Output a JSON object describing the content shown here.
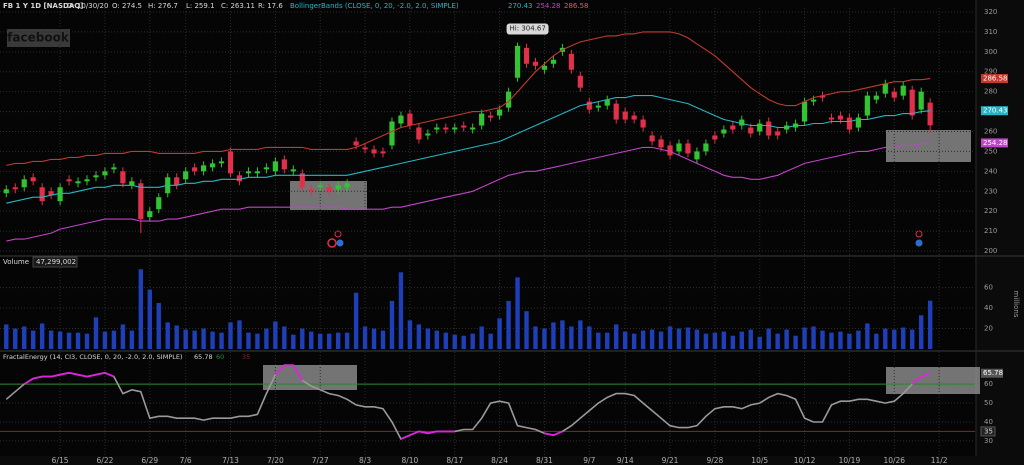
{
  "header": {
    "symbol": "FB 1 Y 1D [NASDAQ]",
    "date": "D: 10/30/20",
    "open": "O: 274.5",
    "high": "H: 276.7",
    "low": "L: 259.1",
    "close": "C: 263.11",
    "range": "R: 17.6",
    "study": "BollingerBands (CLOSE, 0, 20, -2.0, 2.0, SIMPLE)",
    "study_values": [
      "270.43",
      "254.28",
      "286.58"
    ]
  },
  "watermark": "facebook",
  "chart_data": [
    {
      "type": "candlestick",
      "annotation": "Hi: 304.67",
      "up_color": "#33c433",
      "down_color": "#e0304a",
      "xlim": [
        -0.7,
        108
      ],
      "ylim": [
        198,
        322
      ],
      "yticks": [
        200,
        210,
        220,
        230,
        240,
        250,
        260,
        270,
        280,
        290,
        300,
        310,
        320
      ],
      "grid": true,
      "open": [
        229,
        232,
        232,
        237,
        232,
        230,
        225,
        236,
        234,
        235,
        237,
        238,
        241,
        240,
        233,
        234,
        217,
        221,
        229,
        237,
        236,
        242,
        240,
        242,
        244,
        250,
        238,
        239,
        239,
        241,
        240,
        246,
        240,
        239,
        231,
        232,
        232,
        231,
        232,
        255,
        252,
        251,
        250,
        253,
        264,
        269,
        262,
        258,
        261,
        262,
        261,
        263,
        261,
        263,
        268,
        268,
        272,
        287,
        302,
        295,
        291,
        294,
        300,
        299,
        288,
        275,
        272,
        273,
        274,
        270,
        268,
        266,
        258,
        256,
        253,
        250,
        254,
        246,
        250,
        258,
        259,
        263,
        263,
        262,
        260,
        265,
        260,
        261,
        262,
        265,
        275,
        278,
        267,
        268,
        267,
        262,
        268,
        276,
        279,
        280,
        278,
        281,
        271,
        274.5
      ],
      "high": [
        233,
        234,
        238,
        239,
        234,
        232,
        234,
        238,
        237,
        238,
        240,
        242,
        244,
        242,
        237,
        236,
        222,
        229,
        239,
        239,
        242,
        244,
        245,
        246,
        247,
        252,
        240,
        242,
        242,
        244,
        247,
        248,
        243,
        241,
        233,
        235,
        234,
        235,
        236,
        257,
        254,
        253,
        252,
        267,
        270,
        271,
        264,
        261,
        264,
        264,
        264,
        265,
        264,
        271,
        270,
        273,
        282,
        304.67,
        304,
        297,
        295,
        298,
        304,
        301,
        290,
        277,
        275,
        278,
        276,
        272,
        270,
        268,
        260,
        258,
        255,
        256,
        256,
        252,
        256,
        260,
        263,
        265,
        268,
        264,
        266,
        267,
        262,
        265,
        266,
        277,
        278,
        280,
        269,
        270,
        269,
        269,
        280,
        280,
        286,
        282,
        285,
        283,
        282,
        276.7
      ],
      "low": [
        227,
        229,
        230,
        233,
        223,
        226,
        223,
        233,
        232,
        233,
        235,
        236,
        239,
        232,
        231,
        209,
        215,
        219,
        227,
        231,
        234,
        238,
        238,
        240,
        242,
        237,
        233,
        237,
        237,
        239,
        238,
        239,
        238,
        230,
        228,
        230,
        228,
        229,
        230,
        251,
        249,
        247,
        247,
        251,
        262,
        261,
        254,
        256,
        259,
        259,
        259,
        260,
        259,
        261,
        265,
        266,
        270,
        285,
        292,
        291,
        289,
        292,
        298,
        289,
        280,
        269,
        270,
        271,
        264,
        264,
        264,
        260,
        253,
        250,
        246,
        248,
        247,
        244,
        248,
        254,
        257,
        259,
        261,
        257,
        258,
        256,
        256,
        259,
        260,
        263,
        273,
        275,
        264,
        264,
        259,
        260,
        266,
        274,
        277,
        275,
        276,
        266,
        269,
        259.1
      ],
      "close": [
        231,
        231,
        236,
        235,
        225,
        228,
        232,
        235,
        235,
        236,
        238,
        240,
        242,
        234,
        235,
        216,
        220,
        227,
        237,
        233,
        240,
        240,
        243,
        244,
        245,
        239,
        235,
        240,
        240,
        242,
        245,
        241,
        241,
        232,
        230,
        233,
        230,
        233,
        234,
        253,
        251,
        249,
        249,
        265,
        268,
        263,
        256,
        259,
        262,
        261,
        262,
        262,
        262,
        269,
        267,
        271,
        280,
        303,
        294,
        293,
        293,
        296,
        302,
        291,
        282,
        271,
        273,
        276,
        266,
        266,
        266,
        262,
        255,
        252,
        248,
        254,
        249,
        250,
        254,
        256,
        261,
        261,
        266,
        259,
        264,
        258,
        258,
        263,
        264,
        275,
        276,
        277,
        266,
        266,
        261,
        267,
        278,
        278,
        284,
        277,
        283,
        268,
        280,
        263.11
      ],
      "overlays": [
        {
          "color": "#c23a2e",
          "last_label": "286.58",
          "values": [
            243,
            244,
            244,
            245,
            245,
            246,
            246,
            247,
            247,
            248,
            248,
            249,
            249,
            249,
            250,
            250,
            250,
            249,
            249,
            249,
            249,
            249,
            250,
            250,
            250,
            251,
            251,
            251,
            251,
            252,
            252,
            252,
            252,
            252,
            251,
            251,
            251,
            251,
            251,
            252,
            254,
            256,
            258,
            260,
            262,
            263,
            264,
            265,
            266,
            267,
            268,
            269,
            270,
            270,
            271,
            272,
            275,
            280,
            285,
            290,
            294,
            298,
            301,
            303,
            305,
            306,
            307,
            308,
            308,
            309,
            309,
            310,
            310,
            310,
            310,
            309,
            307,
            304,
            301,
            298,
            294,
            290,
            286,
            282,
            279,
            276,
            274,
            273,
            273,
            275,
            277,
            278,
            279,
            280,
            280,
            281,
            282,
            283,
            284,
            285,
            285,
            286,
            286,
            286.58
          ]
        },
        {
          "color": "#26b5c4",
          "last_label": "270.43",
          "values": [
            224,
            225,
            226,
            227,
            227,
            228,
            229,
            229,
            230,
            231,
            232,
            232,
            233,
            233,
            233,
            232,
            232,
            232,
            233,
            233,
            234,
            234,
            235,
            235,
            236,
            236,
            236,
            237,
            237,
            237,
            238,
            238,
            238,
            238,
            238,
            238,
            238,
            238,
            238,
            239,
            240,
            241,
            242,
            243,
            244,
            245,
            246,
            247,
            248,
            249,
            250,
            251,
            252,
            253,
            254,
            255,
            257,
            259,
            261,
            263,
            265,
            267,
            269,
            271,
            273,
            274,
            275,
            276,
            277,
            277,
            278,
            278,
            278,
            277,
            276,
            275,
            274,
            272,
            270,
            268,
            266,
            265,
            264,
            263,
            263,
            263,
            262,
            262,
            263,
            263,
            264,
            264,
            265,
            265,
            265,
            266,
            266,
            267,
            268,
            268,
            269,
            269,
            270,
            270.43
          ]
        },
        {
          "color": "#c044c8",
          "last_label": "254.28",
          "values": [
            205,
            206,
            206,
            207,
            208,
            209,
            211,
            212,
            213,
            214,
            215,
            216,
            216,
            216,
            216,
            215,
            215,
            215,
            216,
            216,
            217,
            218,
            219,
            220,
            221,
            221,
            221,
            222,
            222,
            222,
            222,
            222,
            222,
            222,
            222,
            222,
            222,
            222,
            221,
            221,
            221,
            221,
            221,
            222,
            222,
            223,
            224,
            225,
            226,
            227,
            228,
            229,
            230,
            232,
            234,
            236,
            238,
            239,
            240,
            240,
            241,
            242,
            243,
            244,
            245,
            246,
            247,
            248,
            249,
            250,
            251,
            252,
            252,
            251,
            250,
            248,
            246,
            244,
            242,
            240,
            238,
            237,
            237,
            236,
            236,
            237,
            238,
            240,
            242,
            244,
            245,
            246,
            247,
            248,
            249,
            250,
            250,
            251,
            252,
            252,
            253,
            253,
            254,
            254.28
          ]
        }
      ]
    },
    {
      "type": "bar",
      "title": "Volume",
      "subtitle": "47,299,002",
      "ylabel": "millions",
      "color": "#1f3fb8",
      "xlim": [
        -0.7,
        108
      ],
      "ylim": [
        0,
        88
      ],
      "yticks": [
        20,
        40,
        60
      ],
      "grid": true,
      "values": [
        24,
        20,
        22,
        18,
        25,
        18,
        17,
        16,
        16,
        15,
        31,
        17,
        18,
        24,
        18,
        78,
        58,
        45,
        26,
        23,
        19,
        18,
        20,
        17,
        16,
        26,
        28,
        16,
        15,
        20,
        27,
        22,
        14,
        20,
        17,
        15,
        15,
        16,
        16,
        55,
        22,
        20,
        18,
        47,
        75,
        28,
        24,
        20,
        18,
        16,
        14,
        13,
        15,
        22,
        15,
        30,
        47,
        70,
        37,
        22,
        20,
        26,
        28,
        22,
        28,
        22,
        16,
        16,
        24,
        17,
        15,
        18,
        19,
        17,
        22,
        20,
        21,
        19,
        15,
        16,
        17,
        13,
        17,
        19,
        12,
        20,
        15,
        19,
        13,
        21,
        22,
        18,
        16,
        17,
        15,
        18,
        25,
        15,
        20,
        19,
        21,
        19,
        33,
        47.299002
      ]
    },
    {
      "type": "line",
      "title": "FractalEnergy (14, CI3, CLOSE, 0, 20, -2.0, 2.0, SIMPLE)",
      "last_label": "65.78",
      "color": "#9a9a9a",
      "highlight_color": "#e020e0",
      "levels": [
        {
          "value": 60,
          "color": "#2f8a2f"
        },
        {
          "value": 35,
          "color": "#8a2626"
        }
      ],
      "xlim": [
        -0.7,
        108
      ],
      "ylim": [
        22,
        77
      ],
      "yticks": [
        30,
        40,
        50,
        60
      ],
      "grid": true,
      "xticks": [
        {
          "value": 6,
          "label": "6/15"
        },
        {
          "value": 11,
          "label": "6/22"
        },
        {
          "value": 16,
          "label": "6/29"
        },
        {
          "value": 20,
          "label": "7/6"
        },
        {
          "value": 25,
          "label": "7/13"
        },
        {
          "value": 30,
          "label": "7/20"
        },
        {
          "value": 35,
          "label": "7/27"
        },
        {
          "value": 40,
          "label": "8/3"
        },
        {
          "value": 45,
          "label": "8/10"
        },
        {
          "value": 50,
          "label": "8/17"
        },
        {
          "value": 55,
          "label": "8/24"
        },
        {
          "value": 60,
          "label": "8/31"
        },
        {
          "value": 65,
          "label": "9/7"
        },
        {
          "value": 69,
          "label": "9/14"
        },
        {
          "value": 74,
          "label": "9/21"
        },
        {
          "value": 79,
          "label": "9/28"
        },
        {
          "value": 84,
          "label": "10/5"
        },
        {
          "value": 89,
          "label": "10/12"
        },
        {
          "value": 94,
          "label": "10/19"
        },
        {
          "value": 99,
          "label": "10/26"
        },
        {
          "value": 104,
          "label": "11/2"
        }
      ],
      "values": [
        52,
        56,
        60,
        63,
        64,
        64,
        65,
        66,
        65,
        64,
        65,
        66,
        64,
        55,
        57,
        56,
        42,
        43,
        43,
        42,
        42,
        42,
        41,
        42,
        42,
        42,
        43,
        43,
        44,
        55,
        65,
        70,
        70,
        62,
        59,
        57,
        55,
        54,
        52,
        49,
        48,
        48,
        47,
        40,
        31,
        33,
        35,
        34,
        35,
        35,
        35,
        36,
        36,
        42,
        50,
        51,
        50,
        38,
        37,
        36,
        34,
        33,
        35,
        38,
        42,
        46,
        50,
        53,
        55,
        55,
        54,
        50,
        46,
        42,
        38,
        37,
        37,
        38,
        43,
        47,
        48,
        48,
        47,
        49,
        50,
        53,
        55,
        54,
        52,
        42,
        40,
        40,
        49,
        51,
        51,
        52,
        52,
        51,
        50,
        51,
        55,
        60,
        64,
        65.78
      ]
    }
  ]
}
